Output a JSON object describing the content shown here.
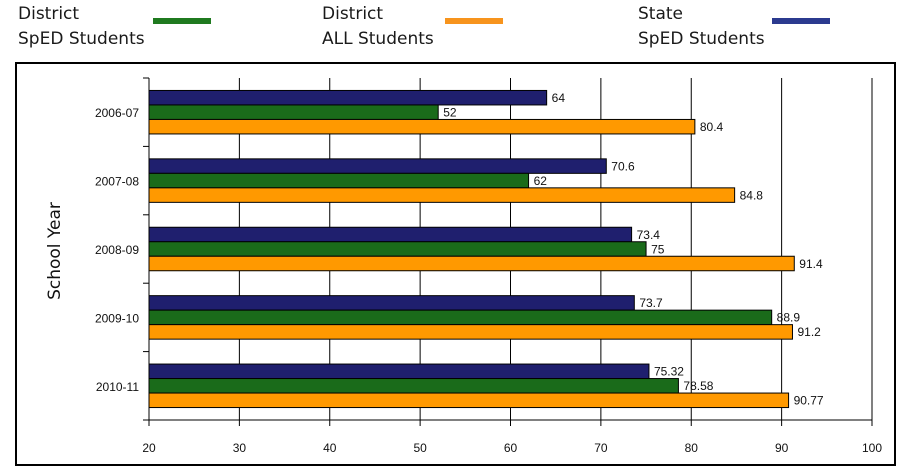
{
  "legend": [
    {
      "line1": "District",
      "line2": "SpED Students",
      "color": "#1f7a1f"
    },
    {
      "line1": "District",
      "line2": "ALL Students",
      "color": "#f7941d"
    },
    {
      "line1": "State",
      "line2": "SpED Students",
      "color": "#2b3a8f"
    }
  ],
  "chart_data": {
    "type": "bar",
    "orientation": "horizontal",
    "ylabel": "School Year",
    "xlabel": "",
    "xlim": [
      20,
      100
    ],
    "x_ticks": [
      20,
      30,
      40,
      50,
      60,
      70,
      80,
      90,
      100
    ],
    "grid": "vertical",
    "legend_position": "top",
    "categories": [
      "2006-07",
      "2007-08",
      "2008-09",
      "2009-10",
      "2010-11"
    ],
    "series": [
      {
        "name": "State SpED Students",
        "color": "#1f1f6e",
        "values": [
          64,
          70.6,
          73.4,
          73.7,
          75.32
        ],
        "labels": [
          "64",
          "70.6",
          "73.4",
          "73.7",
          "75.32"
        ]
      },
      {
        "name": "District SpED Students",
        "color": "#1a6b1a",
        "values": [
          52,
          62,
          75,
          88.9,
          78.58
        ],
        "labels": [
          "52",
          "62",
          "75",
          "88.9",
          "78.58"
        ]
      },
      {
        "name": "District ALL Students",
        "color": "#ff9900",
        "values": [
          80.4,
          84.8,
          91.4,
          91.2,
          90.77
        ],
        "labels": [
          "80.4",
          "84.8",
          "91.4",
          "91.2",
          "90.77"
        ]
      }
    ]
  }
}
